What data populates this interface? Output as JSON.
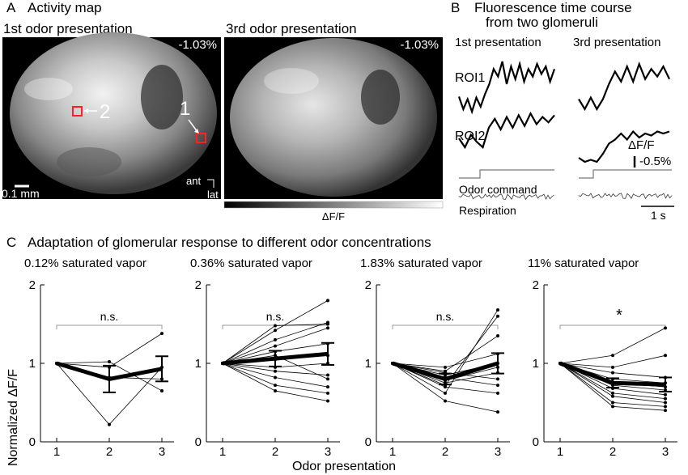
{
  "panel_a": {
    "letter": "A",
    "title": "Activity map",
    "map1_label": "1st odor presentation",
    "map2_label": "3rd odor presentation",
    "map1_value": "-1.03%",
    "map2_value": "-1.03%",
    "roi1_label": "1",
    "roi2_label": "2",
    "scale_bar": "0.1 mm",
    "ant_label": "ant",
    "lat_label": "lat",
    "colorbar_label": "ΔF/F"
  },
  "panel_b": {
    "letter": "B",
    "title_line1": "Fluorescence time course",
    "title_line2": "from two glomeruli",
    "col1": "1st presentation",
    "col2": "3rd presentation",
    "roi1": "ROI1",
    "roi2": "ROI2",
    "df_label": "ΔF/F",
    "df_scale": "-0.5%",
    "odor_command": "Odor command",
    "respiration": "Respiration",
    "time_scale": "1 s"
  },
  "panel_c": {
    "letter": "C",
    "title": "Adaptation of glomerular response to different odor concentrations",
    "ylabel": "Normalized ΔF/F",
    "xlabel": "Odor presentation"
  },
  "chart_data": [
    {
      "type": "line",
      "title": "0.12% saturated vapor",
      "x": [
        1,
        2,
        3
      ],
      "ylim": [
        0,
        2
      ],
      "yticks": [
        "0",
        "1",
        "2"
      ],
      "xticks": [
        "1",
        "2",
        "3"
      ],
      "significance": "n.s.",
      "individual": [
        [
          1,
          1.02,
          0.65
        ],
        [
          1,
          0.22,
          0.95
        ],
        [
          1,
          0.95,
          1.38
        ],
        [
          1,
          0.82,
          0.8
        ]
      ],
      "mean": [
        1,
        0.8,
        0.93
      ],
      "error": [
        0,
        0.17,
        0.16
      ]
    },
    {
      "type": "line",
      "title": "0.36% saturated vapor",
      "x": [
        1,
        2,
        3
      ],
      "ylim": [
        0,
        2
      ],
      "yticks": [
        "0",
        "1",
        "2"
      ],
      "xticks": [
        "1",
        "2",
        "3"
      ],
      "significance": "n.s.",
      "individual": [
        [
          1,
          1.48,
          1.5
        ],
        [
          1,
          1.42,
          1.8
        ],
        [
          1,
          1.3,
          1.52
        ],
        [
          1,
          1.22,
          1.45
        ],
        [
          1,
          1.15,
          1.25
        ],
        [
          1,
          1.05,
          1.1
        ],
        [
          1,
          0.95,
          1.0
        ],
        [
          1,
          0.9,
          0.85
        ],
        [
          1,
          0.82,
          0.7
        ],
        [
          1,
          0.72,
          0.62
        ],
        [
          1,
          0.65,
          0.52
        ],
        [
          1,
          1.1,
          0.8
        ]
      ],
      "mean": [
        1,
        1.06,
        1.12
      ],
      "error": [
        0,
        0.1,
        0.14
      ]
    },
    {
      "type": "line",
      "title": "1.83% saturated vapor",
      "x": [
        1,
        2,
        3
      ],
      "ylim": [
        0,
        2
      ],
      "yticks": [
        "0",
        "1",
        "2"
      ],
      "xticks": [
        "1",
        "2",
        "3"
      ],
      "significance": "n.s.",
      "individual": [
        [
          1,
          0.62,
          1.68
        ],
        [
          1,
          0.72,
          1.6
        ],
        [
          1,
          0.9,
          1.35
        ],
        [
          1,
          0.95,
          1.12
        ],
        [
          1,
          0.85,
          1.0
        ],
        [
          1,
          0.78,
          0.95
        ],
        [
          1,
          0.75,
          0.88
        ],
        [
          1,
          0.82,
          0.72
        ],
        [
          1,
          0.7,
          0.62
        ],
        [
          1,
          0.52,
          0.38
        ],
        [
          1,
          0.88,
          0.8
        ]
      ],
      "mean": [
        1,
        0.8,
        1.0
      ],
      "error": [
        0,
        0.07,
        0.13
      ]
    },
    {
      "type": "line",
      "title": "11% saturated vapor",
      "x": [
        1,
        2,
        3
      ],
      "ylim": [
        0,
        2
      ],
      "yticks": [
        "0",
        "1",
        "2"
      ],
      "xticks": [
        "1",
        "2",
        "3"
      ],
      "significance": "*",
      "individual": [
        [
          1,
          1.1,
          1.45
        ],
        [
          1,
          0.95,
          1.1
        ],
        [
          1,
          0.88,
          0.82
        ],
        [
          1,
          0.8,
          0.75
        ],
        [
          1,
          0.75,
          0.7
        ],
        [
          1,
          0.72,
          0.66
        ],
        [
          1,
          0.68,
          0.6
        ],
        [
          1,
          0.62,
          0.55
        ],
        [
          1,
          0.58,
          0.5
        ],
        [
          1,
          0.5,
          0.45
        ],
        [
          1,
          0.45,
          0.4
        ]
      ],
      "mean": [
        1,
        0.75,
        0.73
      ],
      "error": [
        0,
        0.06,
        0.09
      ]
    }
  ],
  "traces": {
    "roi1_1st": [
      0.3,
      0.05,
      0.25,
      0.0,
      0.28,
      0.1,
      0.35,
      0.55,
      0.85,
      0.7,
      1.0,
      0.55,
      0.9,
      0.65,
      0.95,
      0.6,
      0.85,
      0.7,
      0.95,
      0.75,
      0.9,
      0.6,
      0.85
    ],
    "roi1_3rd": [
      0.25,
      0.05,
      0.28,
      0.05,
      0.25,
      0.55,
      0.8,
      0.6,
      0.9,
      0.6,
      0.95,
      0.65,
      0.85,
      0.7,
      0.9,
      0.65
    ],
    "roi2_1st": [
      0.25,
      0.0,
      0.35,
      0.15,
      0.0,
      0.55,
      0.8,
      0.5,
      0.85,
      0.55,
      0.9,
      0.6,
      0.95,
      0.65,
      0.85,
      0.7,
      0.9
    ],
    "roi2_3rd": [
      0.1,
      0.0,
      0.05,
      0.0,
      0.2,
      0.45,
      0.55,
      0.7,
      0.55,
      0.75,
      0.6,
      0.7,
      0.65,
      0.75,
      0.7,
      0.75
    ]
  }
}
